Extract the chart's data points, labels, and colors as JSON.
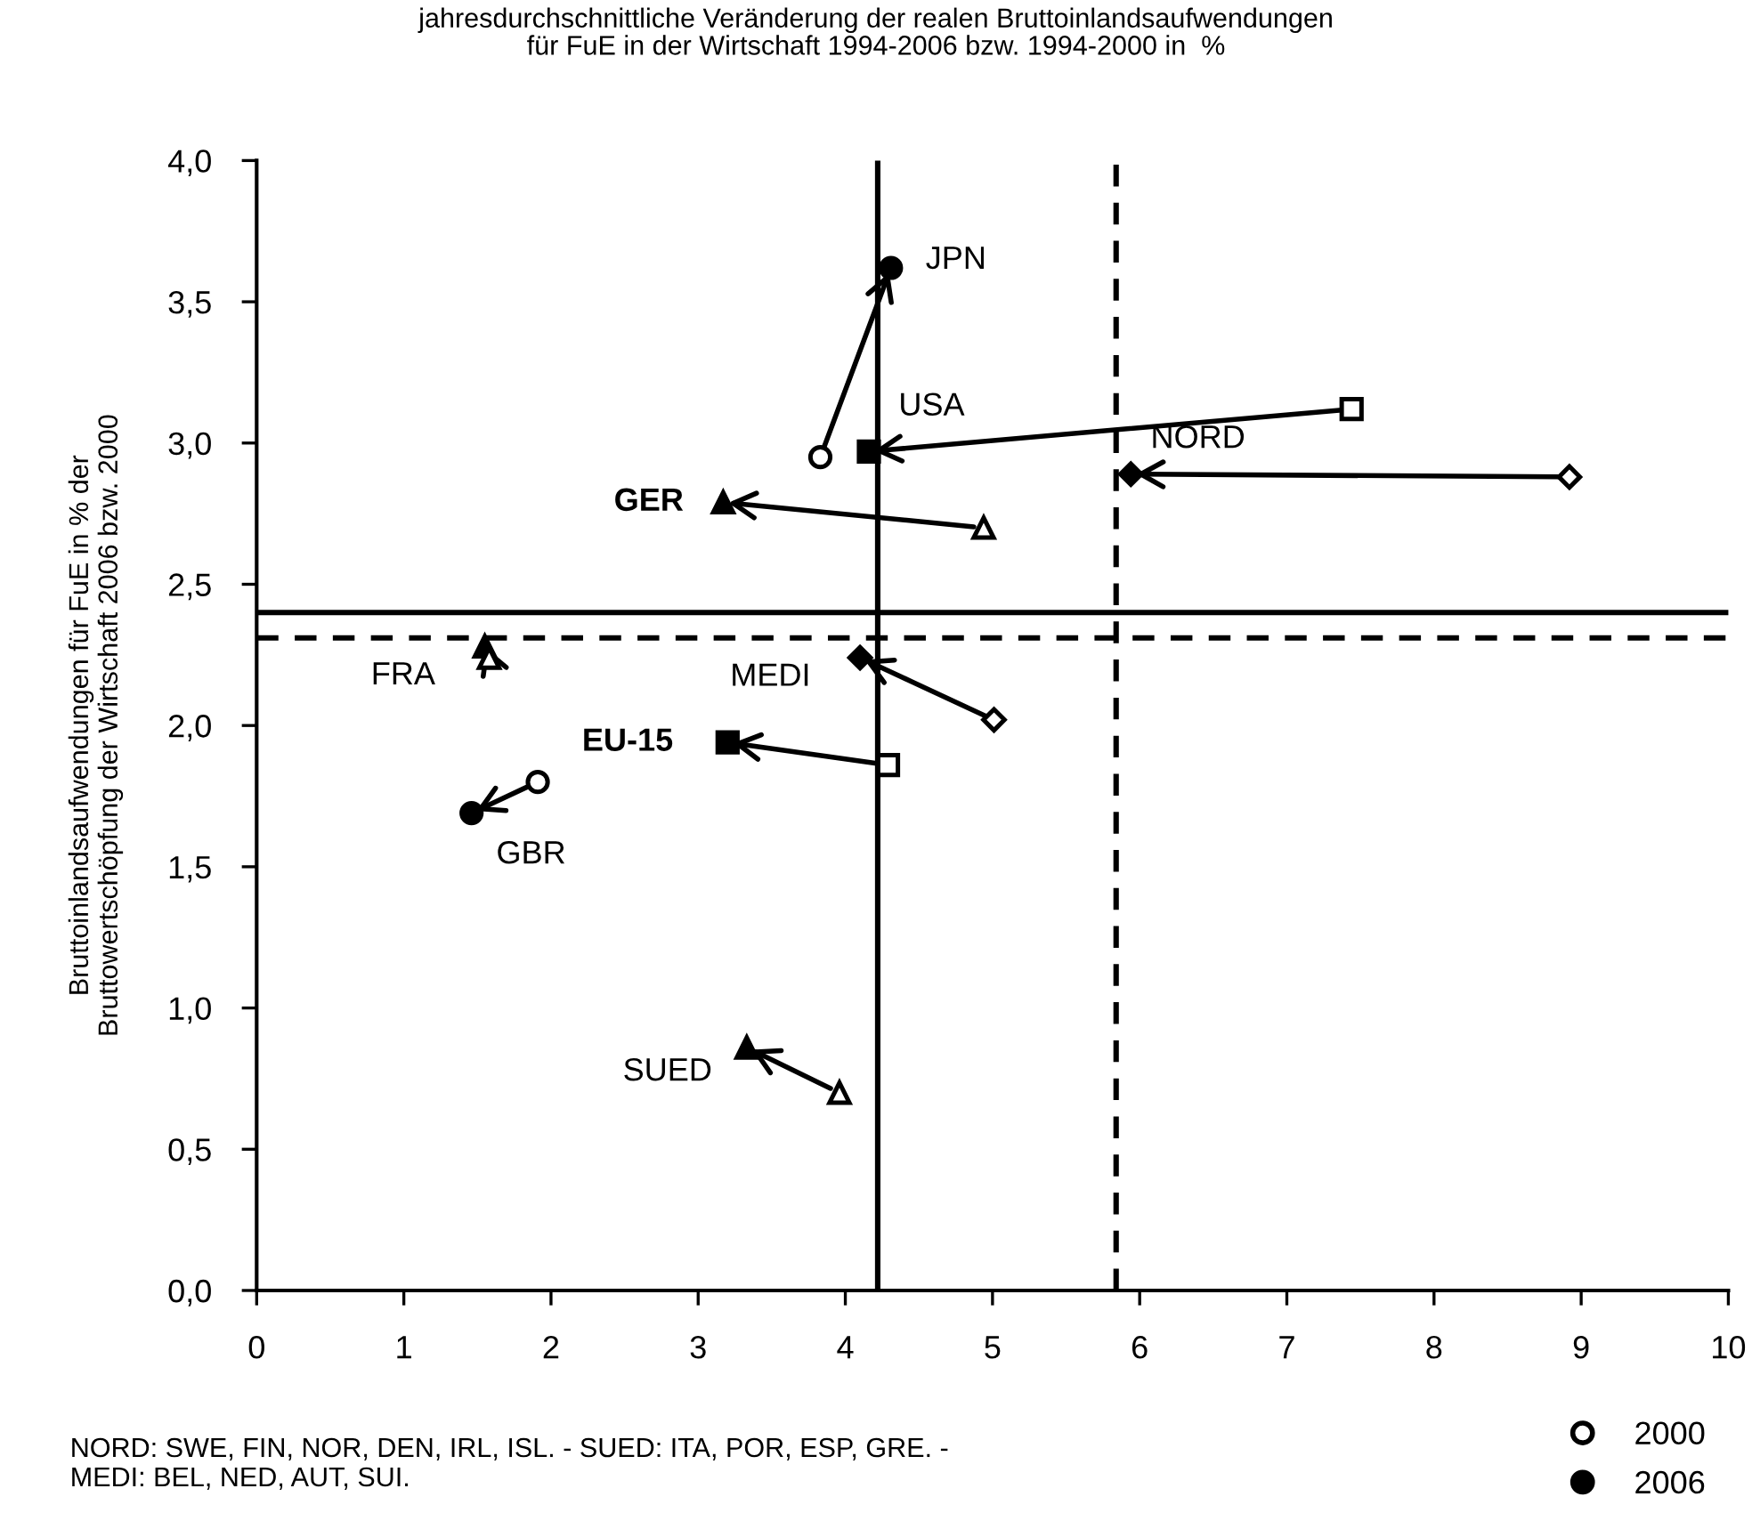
{
  "chart_data": {
    "type": "scatter",
    "title": "jahresdurchschnittliche Veränderung der realen Bruttoinlandsaufwendungen\nfür FuE in der Wirtschaft 1994-2006 bzw. 1994-2000 in  %",
    "ylabel": "Bruttoinlandsaufwendungen für FuE in % der\nBruttowertschöpfung der Wirtschaft 2006 bzw. 2000",
    "series": [
      {
        "name": "2000",
        "color": "#ffffff",
        "x": [
          3.83,
          7.44,
          8.92,
          4.94,
          1.58,
          5.01,
          4.29,
          1.91,
          3.96
        ],
        "values": [
          2.95,
          3.12,
          2.88,
          2.7,
          2.24,
          2.02,
          1.86,
          1.8,
          0.7
        ],
        "marker": [
          "circle",
          "square",
          "diamond",
          "triangle",
          "triangle",
          "diamond",
          "square",
          "circle",
          "triangle"
        ]
      },
      {
        "name": "2006",
        "color": "#000000",
        "x": [
          4.31,
          4.16,
          5.94,
          3.17,
          1.55,
          4.1,
          3.2,
          1.46,
          3.33
        ],
        "values": [
          3.62,
          2.97,
          2.89,
          2.79,
          2.28,
          2.24,
          1.94,
          1.69,
          0.86
        ],
        "marker": [
          "circle",
          "square",
          "diamond",
          "triangle",
          "triangle",
          "diamond",
          "square",
          "circle",
          "triangle"
        ]
      }
    ],
    "annotations": [
      {
        "text": "JPN",
        "x": 4.31,
        "y": 3.62
      },
      {
        "text": "USA",
        "x": 4.16,
        "y": 2.97
      },
      {
        "text": "NORD",
        "x": 5.94,
        "y": 2.89
      },
      {
        "text": "GER",
        "x": 3.17,
        "y": 2.79
      },
      {
        "text": "FRA",
        "x": 1.55,
        "y": 2.28
      },
      {
        "text": "MEDI",
        "x": 4.1,
        "y": 2.24
      },
      {
        "text": "EU-15",
        "x": 3.2,
        "y": 1.94
      },
      {
        "text": "GBR",
        "x": 1.46,
        "y": 1.69
      },
      {
        "text": "SUED",
        "x": 3.33,
        "y": 0.86
      },
      "NORD: SWE, FIN, NOR, DEN, IRL, ISL. - SUED: ITA, POR, ESP, GRE. -\nMEDI: BEL, NED, AUT, SUI."
    ],
    "ref_lines": [
      {
        "axis": "x",
        "value": 4.22,
        "line_style": "solid",
        "color": "#000000"
      },
      {
        "axis": "x",
        "value": 5.84,
        "line_style": "dashed",
        "color": "#000000"
      },
      {
        "axis": "y",
        "value": 2.4,
        "line_style": "solid",
        "color": "#000000"
      },
      {
        "axis": "y",
        "value": 2.31,
        "line_style": "dashed",
        "color": "#000000"
      }
    ],
    "xlim": [
      0,
      10
    ],
    "xticks": [
      0,
      1,
      2,
      3,
      4,
      5,
      6,
      7,
      8,
      9,
      10
    ],
    "ylim": [
      0,
      4
    ],
    "yticks": [
      {
        "value": 0,
        "label": "0,0"
      },
      {
        "value": 0.5,
        "label": "0,5"
      },
      {
        "value": 1,
        "label": "1,0"
      },
      {
        "value": 1.5,
        "label": "1,5"
      },
      {
        "value": 2,
        "label": "2,0"
      },
      {
        "value": 2.5,
        "label": "2,5"
      },
      {
        "value": 3,
        "label": "3,0"
      },
      {
        "value": 3.5,
        "label": "3,5"
      },
      {
        "value": 4,
        "label": "4,0"
      }
    ],
    "grid": false,
    "legend": "bottom right"
  }
}
